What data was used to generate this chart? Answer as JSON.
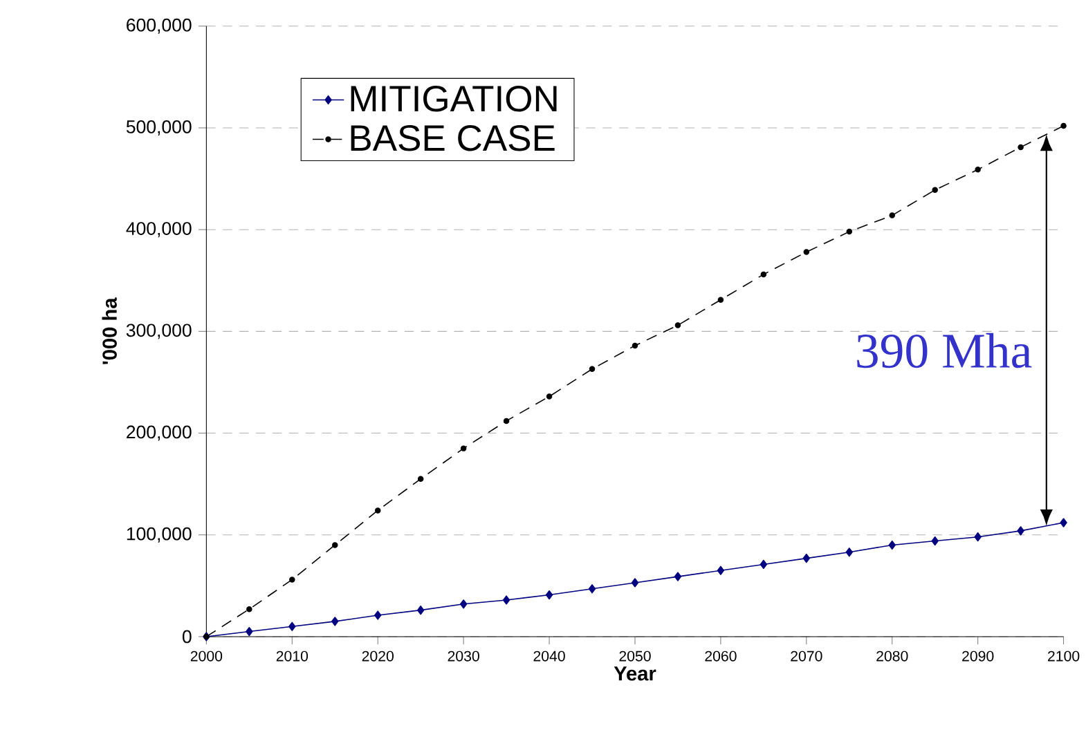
{
  "chart_data": {
    "type": "line",
    "xlabel": "Year",
    "ylabel": "'000 ha",
    "x": [
      2000,
      2005,
      2010,
      2015,
      2020,
      2025,
      2030,
      2035,
      2040,
      2045,
      2050,
      2055,
      2060,
      2065,
      2070,
      2075,
      2080,
      2085,
      2090,
      2095,
      2100
    ],
    "series": [
      {
        "name": "MITIGATION",
        "color": "#000080",
        "marker": "diamond",
        "line_style": "solid",
        "values": [
          0,
          5000,
          10000,
          15000,
          21000,
          26000,
          32000,
          36000,
          41000,
          47000,
          53000,
          59000,
          65000,
          71000,
          77000,
          83000,
          90000,
          94000,
          98000,
          104000,
          112000
        ]
      },
      {
        "name": "BASE CASE",
        "color": "#000000",
        "marker": "circle",
        "line_style": "dashed",
        "values": [
          0,
          27000,
          56000,
          90000,
          124000,
          155000,
          185000,
          212000,
          236000,
          263000,
          286000,
          306000,
          331000,
          356000,
          378000,
          398000,
          414000,
          439000,
          459000,
          481000,
          502000
        ]
      }
    ],
    "xlim": [
      2000,
      2100
    ],
    "xticks": [
      2000,
      2010,
      2020,
      2030,
      2040,
      2050,
      2060,
      2070,
      2080,
      2090,
      2100
    ],
    "ylim": [
      0,
      600000
    ],
    "yticks": [
      {
        "value": 0,
        "label": "0"
      },
      {
        "value": 100000,
        "label": "100,000"
      },
      {
        "value": 200000,
        "label": "200,000"
      },
      {
        "value": 300000,
        "label": "300,000"
      },
      {
        "value": 400000,
        "label": "400,000"
      },
      {
        "value": 500000,
        "label": "500,000"
      },
      {
        "value": 600000,
        "label": "600,000"
      }
    ],
    "grid": "y",
    "legend": "top left",
    "annotations": [
      "390 Mha"
    ]
  }
}
